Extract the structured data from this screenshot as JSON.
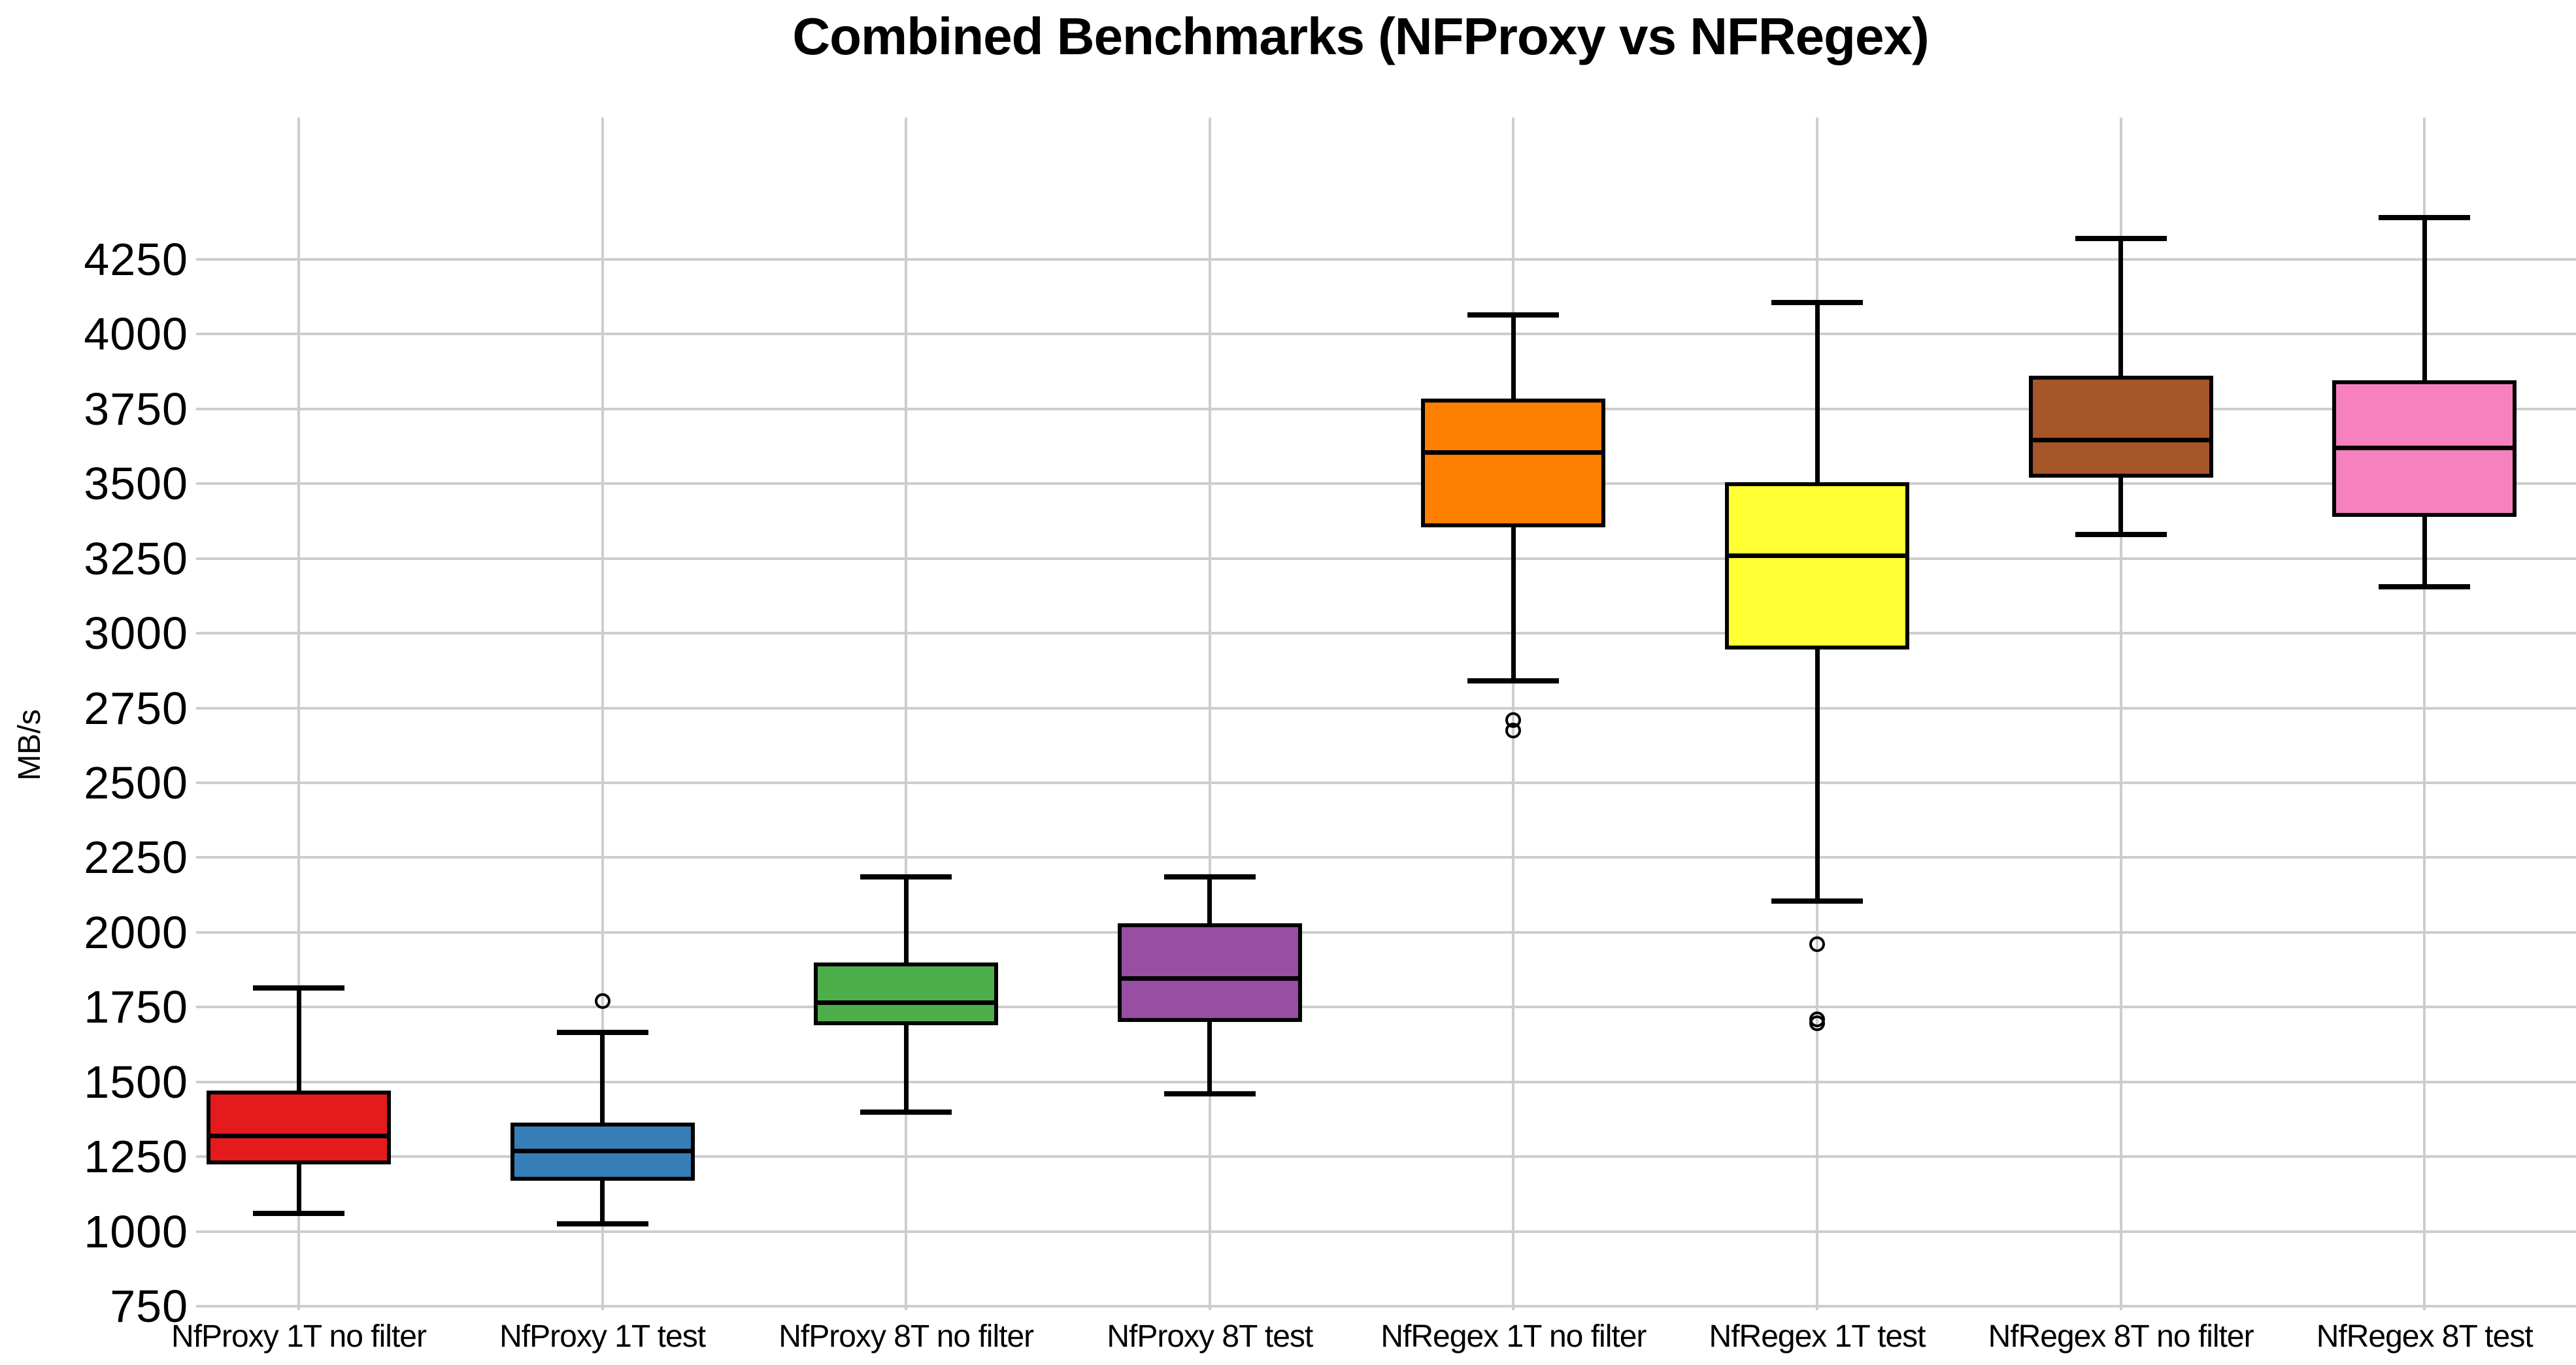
{
  "title": "Combined Benchmarks (NFProxy vs NFRegex)",
  "ylabel": "MB/s",
  "colors": {
    "background": "#ffffff",
    "grid": "#cdcdcd",
    "box_edge": "#000000",
    "text": "#000000"
  },
  "chart_data": {
    "type": "boxplot",
    "title": "Combined Benchmarks (NFProxy vs NFRegex)",
    "xlabel": "",
    "ylabel": "MB/s",
    "grid": true,
    "legend": "none",
    "ylim": [
      737,
      4724
    ],
    "yticks": [
      750,
      1000,
      1250,
      1500,
      1750,
      2000,
      2250,
      2500,
      2750,
      3000,
      3250,
      3500,
      3750,
      4000,
      4250
    ],
    "categories": [
      "NfProxy 1T no filter",
      "NfProxy 1T test",
      "NfProxy 8T no filter",
      "NfProxy 8T test",
      "NfRegex 1T no filter",
      "NfRegex 1T test",
      "NfRegex 8T no filter",
      "NfRegex 8T test"
    ],
    "series": [
      {
        "label": "NfProxy 1T no filter",
        "color": "#e41a1c",
        "whislo": 1060,
        "q1": 1225,
        "med": 1320,
        "q3": 1470,
        "whishi": 1815,
        "fliers": []
      },
      {
        "label": "NfProxy 1T test",
        "color": "#377eb8",
        "whislo": 1025,
        "q1": 1170,
        "med": 1268,
        "q3": 1365,
        "whishi": 1665,
        "fliers": [
          1770
        ]
      },
      {
        "label": "NfProxy 8T no filter",
        "color": "#4daf4a",
        "whislo": 1400,
        "q1": 1690,
        "med": 1765,
        "q3": 1900,
        "whishi": 2185,
        "fliers": []
      },
      {
        "label": "NfProxy 8T test",
        "color": "#984ea3",
        "whislo": 1460,
        "q1": 1700,
        "med": 1845,
        "q3": 2030,
        "whishi": 2185,
        "fliers": []
      },
      {
        "label": "NfRegex 1T no filter",
        "color": "#ff7f00",
        "whislo": 2840,
        "q1": 3355,
        "med": 3605,
        "q3": 3785,
        "whishi": 4065,
        "fliers": [
          2710,
          2675
        ]
      },
      {
        "label": "NfRegex 1T test",
        "color": "#ffff33",
        "whislo": 2105,
        "q1": 2945,
        "med": 3260,
        "q3": 3505,
        "whishi": 4105,
        "fliers": [
          1960,
          1710,
          1695
        ]
      },
      {
        "label": "NfRegex 8T no filter",
        "color": "#a65628",
        "whislo": 3330,
        "q1": 3520,
        "med": 3645,
        "q3": 3860,
        "whishi": 4320,
        "fliers": []
      },
      {
        "label": "NfRegex 8T test",
        "color": "#f781bf",
        "whislo": 3155,
        "q1": 3390,
        "med": 3620,
        "q3": 3845,
        "whishi": 4390,
        "fliers": []
      }
    ]
  }
}
